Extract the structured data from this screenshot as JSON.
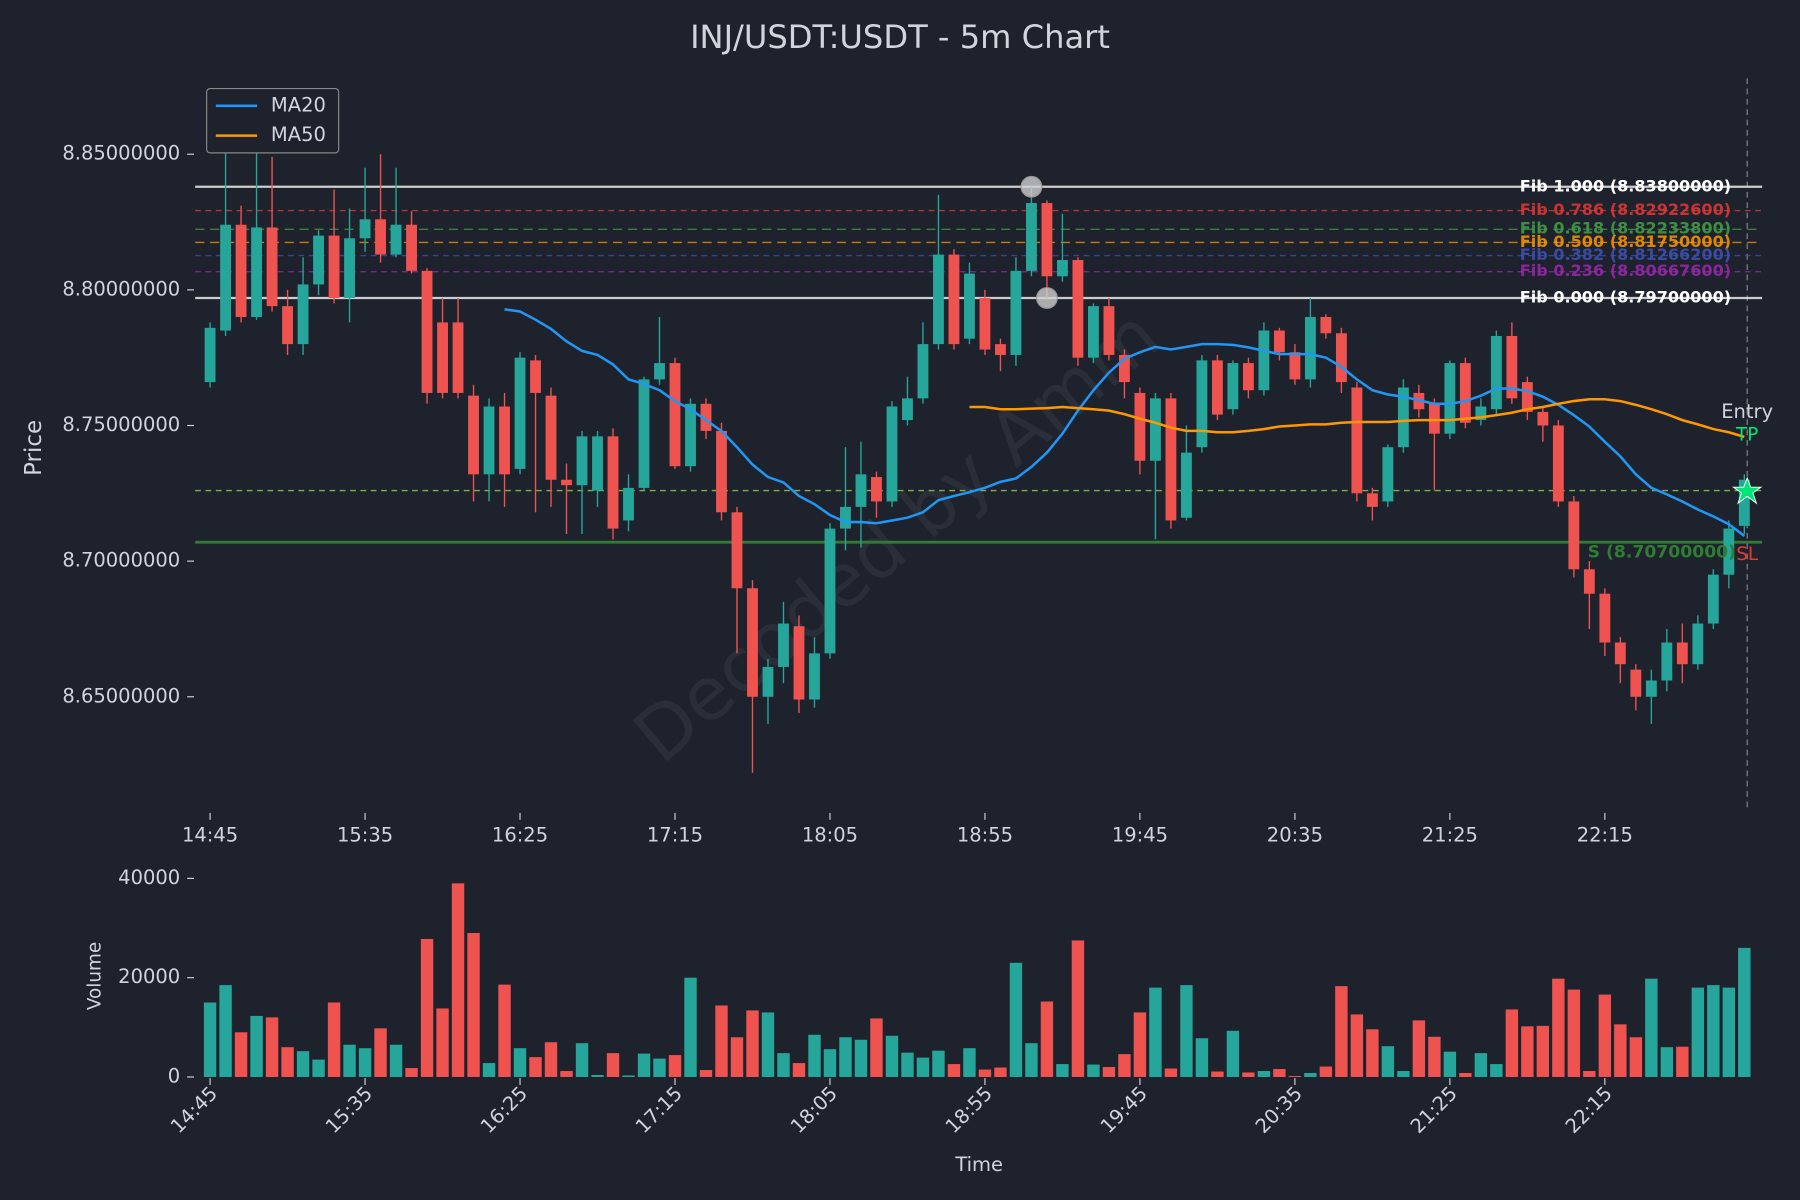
{
  "chart_data": [
    {
      "type": "candlestick",
      "title": "INJ/USDT:USDT - 5m Chart",
      "ylabel": "Price",
      "x": [
        "14:45",
        null,
        null,
        null,
        null,
        null,
        null,
        null,
        null,
        null,
        "15:35",
        null,
        null,
        null,
        null,
        null,
        null,
        null,
        null,
        null,
        "16:25",
        null,
        null,
        null,
        null,
        null,
        null,
        null,
        null,
        null,
        "17:15",
        null,
        null,
        null,
        null,
        null,
        null,
        null,
        null,
        null,
        "18:05",
        null,
        null,
        null,
        null,
        null,
        null,
        null,
        null,
        null,
        "18:55",
        null,
        null,
        null,
        null,
        null,
        null,
        null,
        null,
        null,
        "19:45",
        null,
        null,
        null,
        null,
        null,
        null,
        null,
        null,
        null,
        "20:35",
        null,
        null,
        null,
        null,
        null,
        null,
        null,
        null,
        null,
        "21:25",
        null,
        null,
        null,
        null,
        null,
        null,
        null,
        null,
        null,
        "22:15",
        null,
        null,
        null,
        null,
        null,
        null,
        null,
        null,
        null
      ],
      "open": [
        8.766,
        8.785,
        8.824,
        8.79,
        8.823,
        8.794,
        8.78,
        8.802,
        8.82,
        8.797,
        8.819,
        8.826,
        8.813,
        8.824,
        8.807,
        8.788,
        8.788,
        8.761,
        8.732,
        8.757,
        8.734,
        8.774,
        8.761,
        8.73,
        8.728,
        8.726,
        8.746,
        8.715,
        8.727,
        8.767,
        8.773,
        8.735,
        8.758,
        8.748,
        8.718,
        8.69,
        8.65,
        8.661,
        8.676,
        8.649,
        8.666,
        8.712,
        8.72,
        8.731,
        8.722,
        8.752,
        8.76,
        8.78,
        8.813,
        8.782,
        8.797,
        8.78,
        8.776,
        8.807,
        8.832,
        8.805,
        8.811,
        8.775,
        8.794,
        8.776,
        8.762,
        8.737,
        8.76,
        8.716,
        8.742,
        8.774,
        8.756,
        8.773,
        8.763,
        8.785,
        8.777,
        8.767,
        8.79,
        8.784,
        8.764,
        8.725,
        8.722,
        8.742,
        8.762,
        8.758,
        8.747,
        8.773,
        8.752,
        8.756,
        8.783,
        8.766,
        8.755,
        8.75,
        8.722,
        8.697,
        8.688,
        8.67,
        8.66,
        8.65,
        8.656,
        8.67,
        8.662,
        8.677,
        8.695,
        8.713
      ],
      "high": [
        8.788,
        8.853,
        8.831,
        8.868,
        8.849,
        8.8,
        8.812,
        8.822,
        8.837,
        8.83,
        8.845,
        8.85,
        8.845,
        8.829,
        8.808,
        8.797,
        8.797,
        8.765,
        8.76,
        8.762,
        8.777,
        8.776,
        8.764,
        8.736,
        8.748,
        8.748,
        8.749,
        8.732,
        8.768,
        8.79,
        8.775,
        8.76,
        8.76,
        8.751,
        8.72,
        8.693,
        8.664,
        8.685,
        8.68,
        8.672,
        8.714,
        8.742,
        8.744,
        8.733,
        8.759,
        8.768,
        8.788,
        8.835,
        8.815,
        8.81,
        8.8,
        8.782,
        8.812,
        8.838,
        8.833,
        8.828,
        8.812,
        8.795,
        8.797,
        8.778,
        8.764,
        8.762,
        8.762,
        8.75,
        8.776,
        8.776,
        8.774,
        8.775,
        8.788,
        8.786,
        8.78,
        8.797,
        8.791,
        8.786,
        8.766,
        8.727,
        8.743,
        8.767,
        8.765,
        8.76,
        8.774,
        8.775,
        8.76,
        8.785,
        8.788,
        8.768,
        8.757,
        8.752,
        8.724,
        8.7,
        8.69,
        8.672,
        8.662,
        8.66,
        8.675,
        8.677,
        8.68,
        8.697,
        8.715,
        8.732
      ],
      "low": [
        8.764,
        8.783,
        8.788,
        8.789,
        8.792,
        8.776,
        8.776,
        8.798,
        8.795,
        8.788,
        8.814,
        8.81,
        8.812,
        8.806,
        8.758,
        8.76,
        8.76,
        8.722,
        8.722,
        8.72,
        8.732,
        8.718,
        8.72,
        8.71,
        8.71,
        8.72,
        8.708,
        8.711,
        8.726,
        8.765,
        8.734,
        8.733,
        8.745,
        8.715,
        8.666,
        8.622,
        8.64,
        8.655,
        8.644,
        8.646,
        8.664,
        8.704,
        8.705,
        8.716,
        8.72,
        8.75,
        8.758,
        8.778,
        8.778,
        8.78,
        8.776,
        8.77,
        8.772,
        8.805,
        8.797,
        8.803,
        8.772,
        8.773,
        8.774,
        8.76,
        8.732,
        8.708,
        8.712,
        8.715,
        8.74,
        8.752,
        8.754,
        8.76,
        8.761,
        8.774,
        8.765,
        8.764,
        8.782,
        8.762,
        8.722,
        8.715,
        8.72,
        8.74,
        8.753,
        8.726,
        8.745,
        8.749,
        8.75,
        8.754,
        8.758,
        8.752,
        8.744,
        8.72,
        8.694,
        8.675,
        8.665,
        8.655,
        8.645,
        8.64,
        8.652,
        8.655,
        8.66,
        8.675,
        8.69,
        8.71
      ],
      "close": [
        8.786,
        8.824,
        8.79,
        8.823,
        8.794,
        8.78,
        8.802,
        8.82,
        8.797,
        8.819,
        8.826,
        8.813,
        8.824,
        8.807,
        8.762,
        8.762,
        8.762,
        8.732,
        8.757,
        8.732,
        8.775,
        8.762,
        8.73,
        8.728,
        8.746,
        8.746,
        8.712,
        8.727,
        8.767,
        8.773,
        8.735,
        8.758,
        8.748,
        8.718,
        8.69,
        8.65,
        8.661,
        8.677,
        8.649,
        8.666,
        8.712,
        8.72,
        8.732,
        8.722,
        8.757,
        8.76,
        8.78,
        8.813,
        8.78,
        8.806,
        8.778,
        8.776,
        8.807,
        8.832,
        8.805,
        8.811,
        8.775,
        8.794,
        8.776,
        8.766,
        8.737,
        8.76,
        8.715,
        8.74,
        8.774,
        8.754,
        8.773,
        8.763,
        8.785,
        8.777,
        8.767,
        8.79,
        8.784,
        8.766,
        8.725,
        8.72,
        8.742,
        8.764,
        8.756,
        8.747,
        8.773,
        8.751,
        8.757,
        8.783,
        8.76,
        8.755,
        8.75,
        8.722,
        8.697,
        8.688,
        8.67,
        8.662,
        8.65,
        8.656,
        8.67,
        8.662,
        8.677,
        8.695,
        8.712,
        8.73
      ],
      "up_color": "#26a69a",
      "down_color": "#ef5350",
      "ylim": [
        8.6076,
        8.878
      ],
      "yticks": [
        {
          "value": 8.65,
          "label": "8.65000000"
        },
        {
          "value": 8.7,
          "label": "8.70000000"
        },
        {
          "value": 8.75,
          "label": "8.75000000"
        },
        {
          "value": 8.8,
          "label": "8.80000000"
        },
        {
          "value": 8.85,
          "label": "8.85000000"
        }
      ],
      "legend": "upper left",
      "series": [
        {
          "name": "MA20",
          "color": "#2196f3",
          "values": [
            null,
            null,
            null,
            null,
            null,
            null,
            null,
            null,
            null,
            null,
            null,
            null,
            null,
            null,
            null,
            null,
            null,
            null,
            null,
            8.7928,
            8.792,
            8.789,
            8.7856,
            8.781,
            8.7775,
            8.776,
            8.7725,
            8.767,
            8.7653,
            8.763,
            8.759,
            8.756,
            8.752,
            8.748,
            8.742,
            8.7356,
            8.731,
            8.729,
            8.724,
            8.721,
            8.717,
            8.7144,
            8.7144,
            8.714,
            8.715,
            8.716,
            8.718,
            8.7225,
            8.724,
            8.7254,
            8.727,
            8.7292,
            8.7305,
            8.7347,
            8.74,
            8.747,
            8.7555,
            8.763,
            8.7695,
            8.7746,
            8.777,
            8.779,
            8.778,
            8.779,
            8.78,
            8.78,
            8.7797,
            8.7788,
            8.7775,
            8.7763,
            8.7763,
            8.7763,
            8.775,
            8.7716,
            8.767,
            8.763,
            8.7614,
            8.7606,
            8.7593,
            8.758,
            8.758,
            8.759,
            8.761,
            8.7636,
            8.7636,
            8.7627,
            8.7606,
            8.7576,
            8.7538,
            8.7496,
            8.744,
            8.7386,
            8.732,
            8.727,
            8.7246,
            8.722,
            8.719,
            8.7165,
            8.7136,
            8.7093
          ]
        },
        {
          "name": "MA50",
          "color": "#ff9800",
          "values": [
            null,
            null,
            null,
            null,
            null,
            null,
            null,
            null,
            null,
            null,
            null,
            null,
            null,
            null,
            null,
            null,
            null,
            null,
            null,
            null,
            null,
            null,
            null,
            null,
            null,
            null,
            null,
            null,
            null,
            null,
            null,
            null,
            null,
            null,
            null,
            null,
            null,
            null,
            null,
            null,
            null,
            null,
            null,
            null,
            null,
            null,
            null,
            null,
            null,
            8.7568,
            8.7568,
            8.756,
            8.756,
            8.7562,
            8.7564,
            8.7568,
            8.7564,
            8.756,
            8.7555,
            8.7542,
            8.7525,
            8.751,
            8.7492,
            8.748,
            8.748,
            8.7475,
            8.7475,
            8.748,
            8.7487,
            8.7496,
            8.75,
            8.7504,
            8.7504,
            8.751,
            8.7513,
            8.7513,
            8.7513,
            8.7517,
            8.752,
            8.752,
            8.752,
            8.7525,
            8.753,
            8.7538,
            8.7547,
            8.756,
            8.7568,
            8.758,
            8.759,
            8.7597,
            8.7597,
            8.759,
            8.7576,
            8.756,
            8.7542,
            8.752,
            8.7504,
            8.7487,
            8.7475,
            8.7458
          ]
        }
      ],
      "levels": [
        {
          "label": "Fib 1.000 (8.83800000)",
          "value": 8.838,
          "color": "#e0e0e0",
          "style": "solid"
        },
        {
          "label": "Fib 0.786 (8.82922600)",
          "value": 8.829226,
          "color": "#e53935",
          "style": "dashed"
        },
        {
          "label": "Fib 0.618 (8.82233800)",
          "value": 8.822338,
          "color": "#43a047",
          "style": "dashed"
        },
        {
          "label": "Fib 0.500 (8.81750000)",
          "value": 8.8175,
          "color": "#ff9800",
          "style": "dashed"
        },
        {
          "label": "Fib 0.382 (8.81266200)",
          "value": 8.812662,
          "color": "#3f51b5",
          "style": "dashed"
        },
        {
          "label": "Fib 0.236 (8.80667600)",
          "value": 8.806676,
          "color": "#9c27b0",
          "style": "dashed"
        },
        {
          "label": "Fib 0.000 (8.79700000)",
          "value": 8.797,
          "color": "#e0e0e0",
          "style": "solid"
        }
      ],
      "support": {
        "label": "S (8.70700000)",
        "value": 8.707,
        "color": "#2e7d32"
      },
      "entry": {
        "label": "Entry",
        "value": 8.726,
        "color": "#7cb342"
      },
      "tp_label": "TP",
      "sl_label": "SL"
    },
    {
      "type": "bar",
      "xlabel": "Time",
      "ylabel": "Volume",
      "categories": [
        "14:45",
        null,
        null,
        null,
        null,
        null,
        null,
        null,
        null,
        null,
        "15:35",
        null,
        null,
        null,
        null,
        null,
        null,
        null,
        null,
        null,
        "16:25",
        null,
        null,
        null,
        null,
        null,
        null,
        null,
        null,
        null,
        "17:15",
        null,
        null,
        null,
        null,
        null,
        null,
        null,
        null,
        null,
        "18:05",
        null,
        null,
        null,
        null,
        null,
        null,
        null,
        null,
        null,
        "18:55",
        null,
        null,
        null,
        null,
        null,
        null,
        null,
        null,
        null,
        "19:45",
        null,
        null,
        null,
        null,
        null,
        null,
        null,
        null,
        null,
        "20:35",
        null,
        null,
        null,
        null,
        null,
        null,
        null,
        null,
        null,
        "21:25",
        null,
        null,
        null,
        null,
        null,
        null,
        null,
        null,
        null,
        "22:15",
        null,
        null,
        null,
        null,
        null,
        null,
        null,
        null,
        null
      ],
      "values": [
        15000,
        18500,
        9000,
        12300,
        12000,
        6000,
        5200,
        3500,
        15000,
        6500,
        5800,
        9800,
        6500,
        1800,
        27800,
        13800,
        39000,
        29000,
        2800,
        18600,
        5800,
        4000,
        7000,
        1200,
        6800,
        400,
        4800,
        300,
        4700,
        3700,
        4400,
        20000,
        1400,
        14400,
        8000,
        13400,
        13000,
        4800,
        2800,
        8500,
        5600,
        8000,
        7500,
        11800,
        8300,
        4900,
        3900,
        5300,
        2600,
        5800,
        1500,
        1900,
        23000,
        6800,
        15200,
        2600,
        27500,
        2500,
        2000,
        4600,
        13000,
        18000,
        1700,
        18500,
        7800,
        1100,
        9300,
        900,
        1200,
        1600,
        200,
        800,
        2100,
        18300,
        12600,
        9600,
        6200,
        1200,
        11400,
        8100,
        5100,
        800,
        4800,
        2600,
        13600,
        10200,
        10300,
        19800,
        17600,
        1200,
        16600,
        10600,
        8000,
        19800,
        6000,
        6100,
        18000,
        18500,
        18000,
        26000
      ],
      "ylim": [
        0,
        42000
      ],
      "yticks": [
        0,
        20000,
        40000
      ]
    }
  ]
}
